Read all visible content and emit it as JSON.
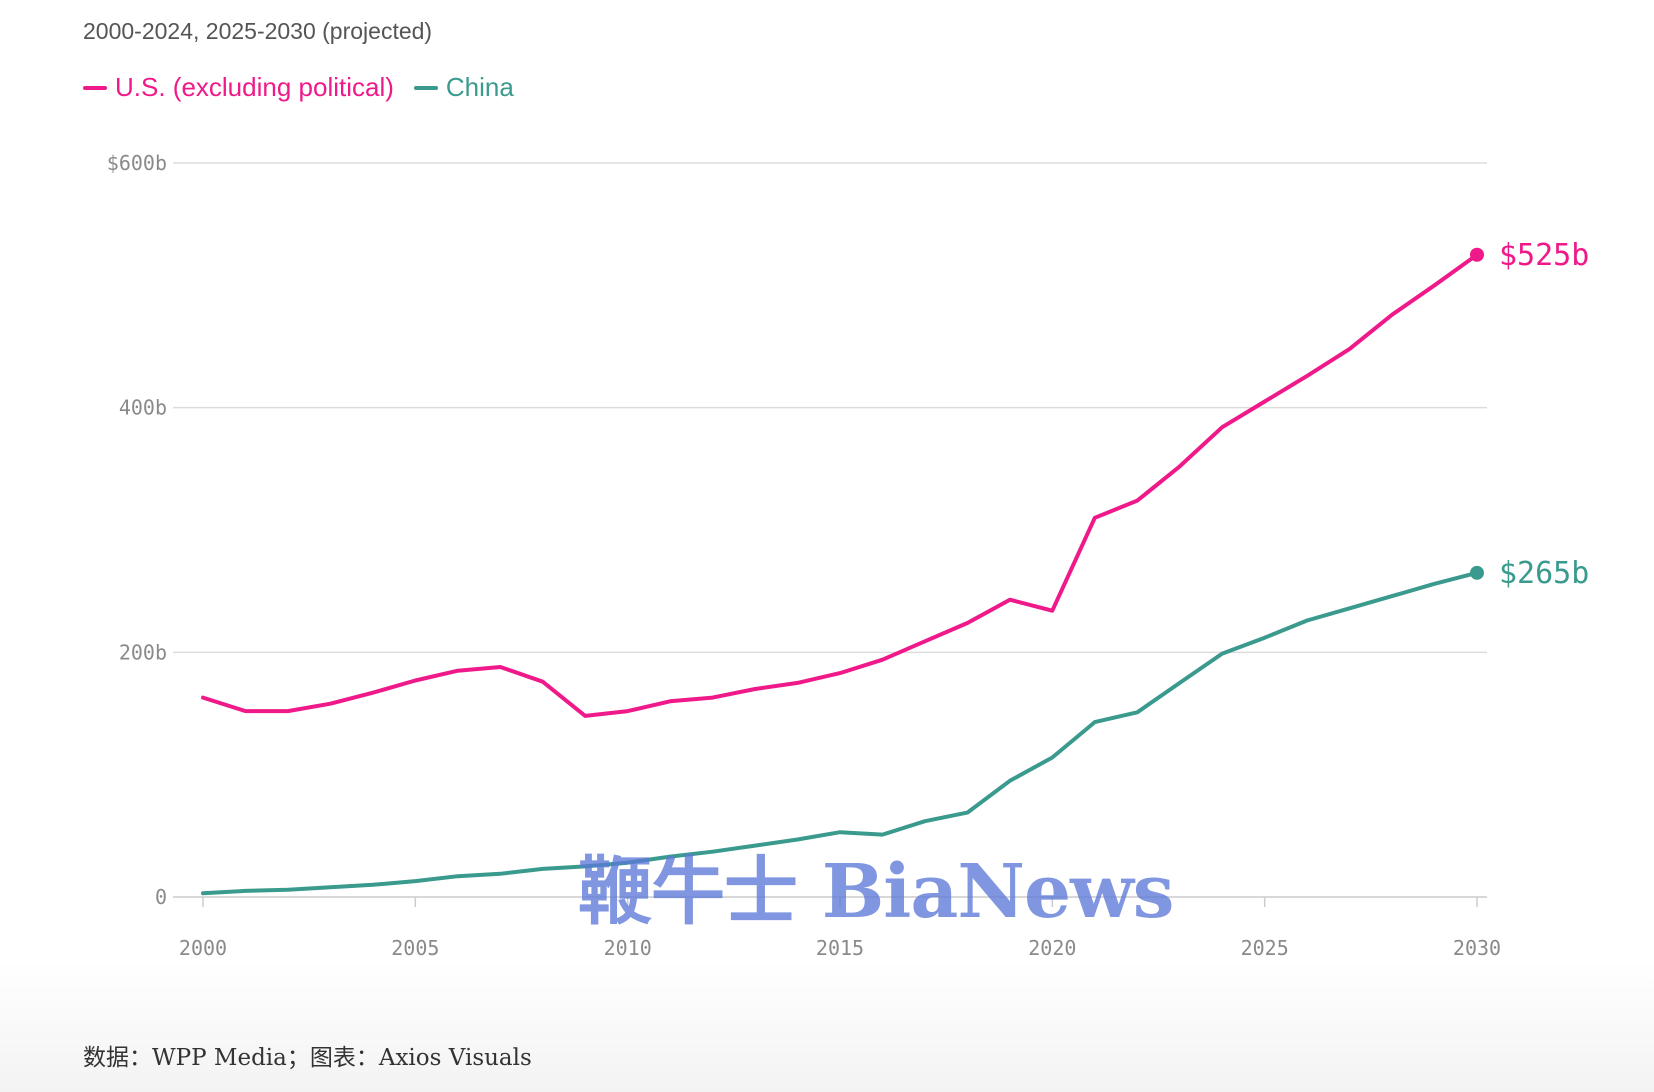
{
  "subtitle": "2000-2024, 2025-2030 (projected)",
  "colors": {
    "us": "#f0198a",
    "china": "#3a9a8e",
    "grid": "#dddddd",
    "axis": "#cccccc"
  },
  "chart_data": {
    "type": "line",
    "x": [
      2000,
      2001,
      2002,
      2003,
      2004,
      2005,
      2006,
      2007,
      2008,
      2009,
      2010,
      2011,
      2012,
      2013,
      2014,
      2015,
      2016,
      2017,
      2018,
      2019,
      2020,
      2021,
      2022,
      2023,
      2024,
      2025,
      2026,
      2027,
      2028,
      2029,
      2030
    ],
    "series": [
      {
        "name": "U.S. (excluding political)",
        "color": "#f0198a",
        "values": [
          163,
          152,
          152,
          158,
          167,
          177,
          185,
          188,
          176,
          148,
          152,
          160,
          163,
          170,
          175,
          183,
          194,
          209,
          224,
          243,
          234,
          310,
          324,
          352,
          384,
          405,
          426,
          448,
          476,
          500,
          525
        ],
        "end_label": "$525b"
      },
      {
        "name": "China",
        "color": "#3a9a8e",
        "values": [
          3,
          5,
          6,
          8,
          10,
          13,
          17,
          19,
          23,
          25,
          28,
          33,
          37,
          42,
          47,
          53,
          51,
          62,
          69,
          95,
          114,
          143,
          151,
          175,
          199,
          212,
          226,
          236,
          246,
          256,
          265
        ],
        "end_label": "$265b"
      }
    ],
    "ylim": [
      0,
      600
    ],
    "xlim": [
      2000,
      2030
    ],
    "y_ticks": [
      0,
      200,
      400,
      600
    ],
    "y_tick_labels": [
      "0",
      "200b",
      "400b",
      "$600b"
    ],
    "x_ticks": [
      2000,
      2005,
      2010,
      2015,
      2020,
      2025,
      2030
    ],
    "x_tick_labels": [
      "2000",
      "2005",
      "2010",
      "2015",
      "2020",
      "2025",
      "2030"
    ],
    "grid": true,
    "legend_position": "top-left"
  },
  "watermark": "鞭牛士 BiaNews",
  "source": "数据：WPP Media；图表：Axios Visuals"
}
